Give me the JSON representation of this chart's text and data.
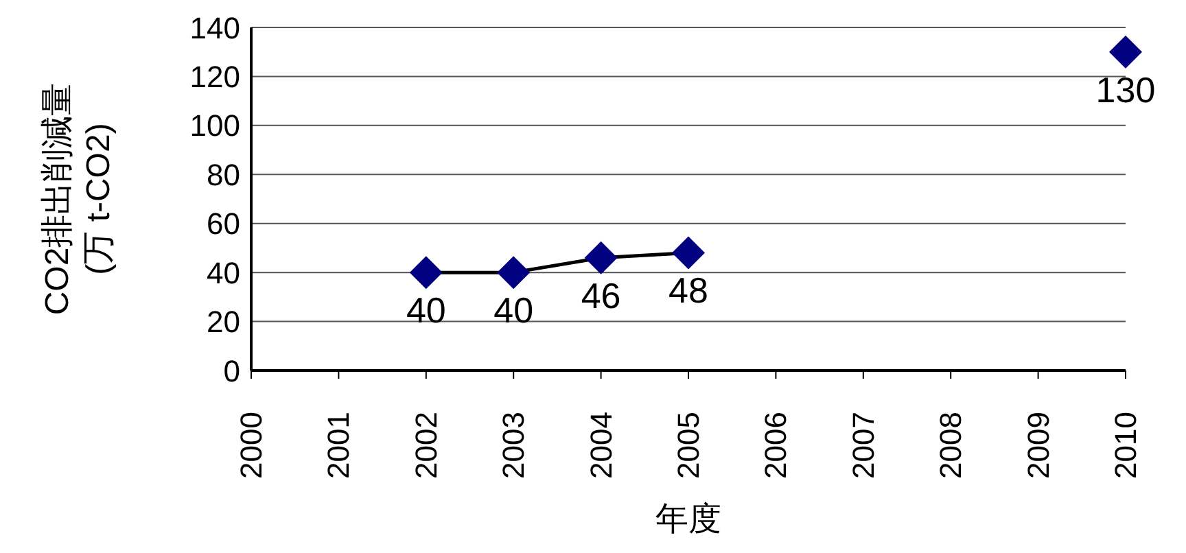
{
  "chart_data": {
    "type": "line",
    "xlabel": "年度",
    "ylabel": "CO2排出削減量\n(万 t-CO2)",
    "categories": [
      "2000",
      "2001",
      "2002",
      "2003",
      "2004",
      "2005",
      "2006",
      "2007",
      "2008",
      "2009",
      "2010"
    ],
    "series": [
      {
        "color": "#000080",
        "values": [
          null,
          null,
          40,
          40,
          46,
          48,
          null,
          null,
          null,
          null,
          130
        ]
      }
    ],
    "ylim": [
      0,
      140
    ],
    "yticks": [
      0,
      20,
      40,
      60,
      80,
      100,
      120,
      140
    ],
    "grid": "y",
    "legend": false,
    "marker": "diamond",
    "line_style": "solid",
    "data_labels": true
  }
}
